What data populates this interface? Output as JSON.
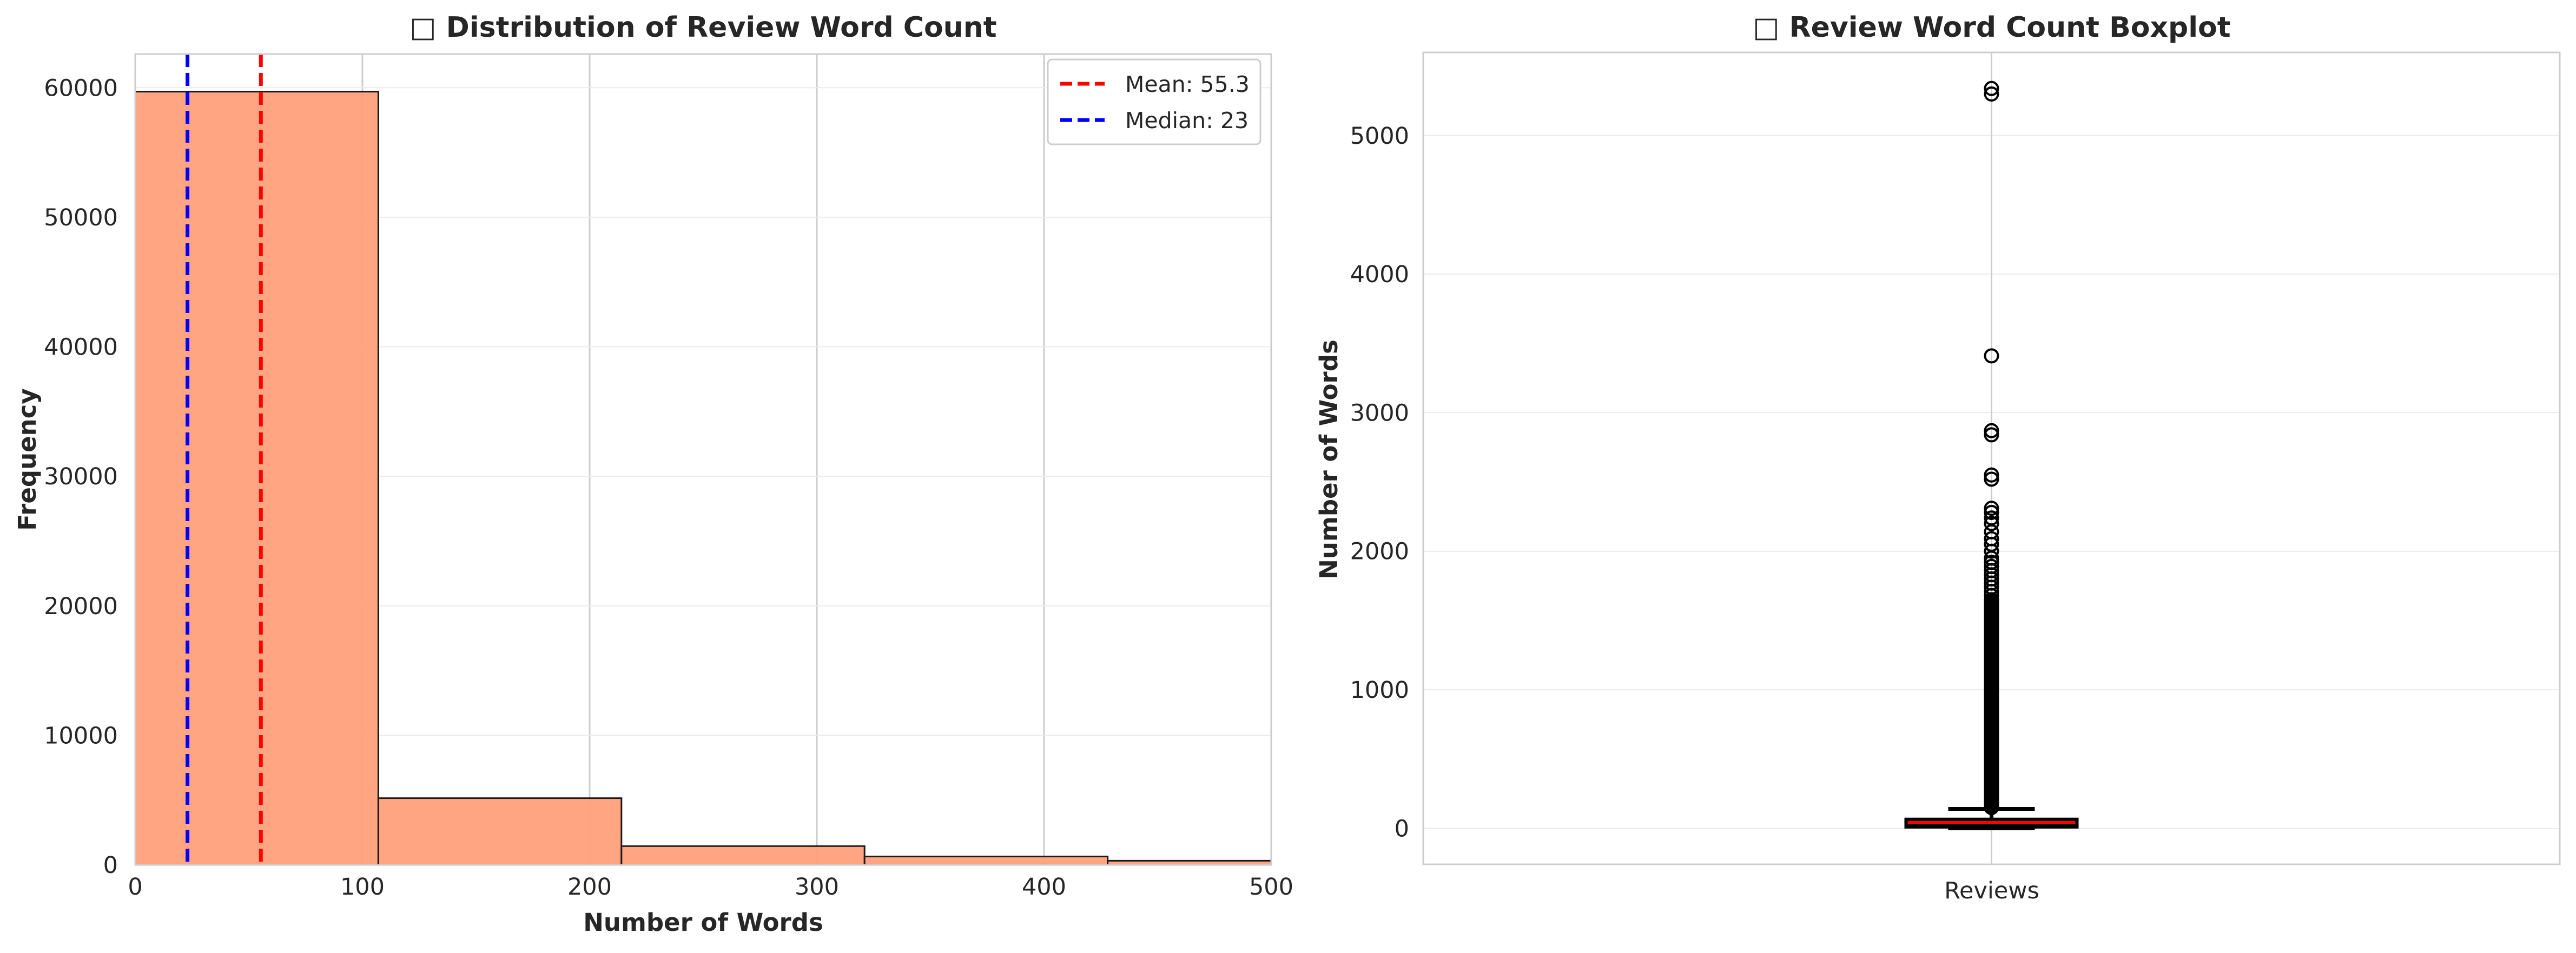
{
  "chart_data": [
    {
      "type": "bar",
      "title": "□ Distribution of Review Word Count",
      "xlabel": "Number of Words",
      "ylabel": "Frequency",
      "xlim": [
        0,
        500
      ],
      "ylim": [
        0,
        62600
      ],
      "xticks": [
        "0",
        "100",
        "200",
        "300",
        "400",
        "500"
      ],
      "yticks": [
        "0",
        "10000",
        "20000",
        "30000",
        "40000",
        "50000",
        "60000"
      ],
      "bins": [
        {
          "start": 0,
          "end": 107,
          "count": 59700
        },
        {
          "start": 107,
          "end": 214,
          "count": 5150
        },
        {
          "start": 214,
          "end": 321,
          "count": 1450
        },
        {
          "start": 321,
          "end": 428,
          "count": 650
        },
        {
          "start": 428,
          "end": 535,
          "count": 320
        }
      ],
      "bar_color": "#FFA07A",
      "lines": [
        {
          "label": "Mean: 55.3",
          "value": 55.3,
          "color": "#FF0000"
        },
        {
          "label": "Median: 23",
          "value": 23,
          "color": "#0000FF"
        }
      ],
      "legend_position": "top-right",
      "grid": true
    },
    {
      "type": "box",
      "title": "□ Review Word Count Boxplot",
      "xlabel": "",
      "ylabel": "Number of Words",
      "ylim": [
        -260,
        5600
      ],
      "yticks": [
        "0",
        "1000",
        "2000",
        "3000",
        "4000",
        "5000"
      ],
      "category": "Reviews",
      "box": {
        "q1": 10,
        "median": 23,
        "q3": 65,
        "whisker_low": 1,
        "whisker_high": 140
      },
      "outliers": [
        5340,
        5300,
        3410,
        2870,
        2840,
        2550,
        2520,
        2310,
        2280,
        2240,
        2200,
        2140,
        2090,
        2050,
        2000,
        1950,
        1920,
        1890,
        1860,
        1830,
        1800,
        1770,
        1740,
        1710,
        1680,
        1650
      ],
      "outlier_dense_range": [
        150,
        1650
      ],
      "box_color": "#FF0000",
      "grid": true
    }
  ]
}
